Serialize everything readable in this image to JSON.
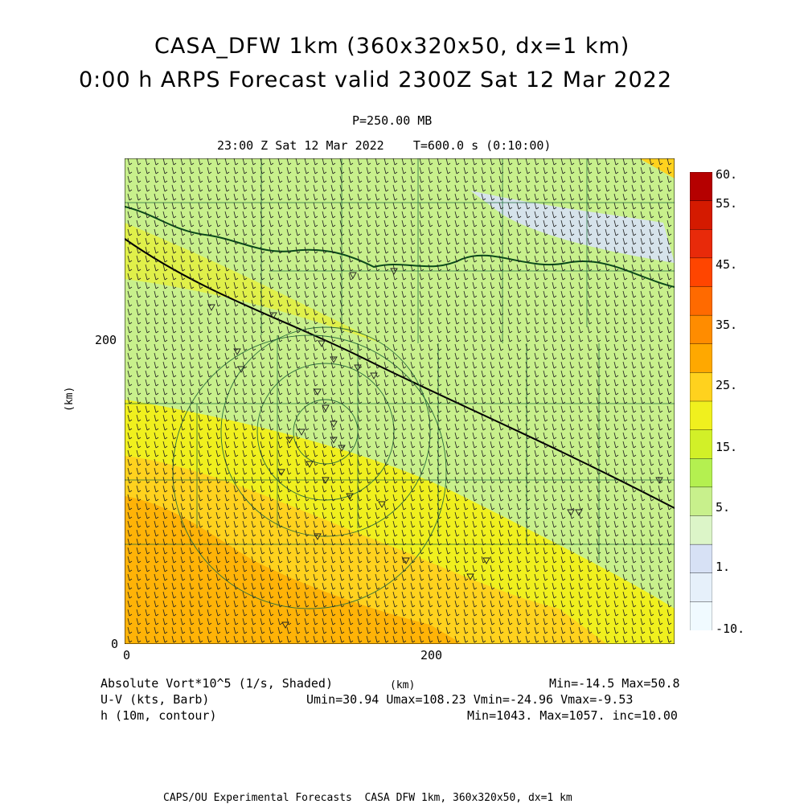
{
  "header": {
    "title_line1": "CASA_DFW 1km (360x320x50, dx=1 km)",
    "title_line2": "0:00 h ARPS Forecast valid 2300Z Sat 12 Mar 2022",
    "pressure": "P=250.00 MB",
    "time_line": "23:00 Z Sat 12 Mar 2022    T=600.0 s (0:10:00)"
  },
  "axes": {
    "x_ticks": [
      "0",
      "200"
    ],
    "y_ticks": [
      "0",
      "200"
    ],
    "x_unit": "(km)",
    "y_unit": "(km)"
  },
  "colorbar": {
    "labels": [
      "60.",
      "55.",
      "45.",
      "35.",
      "25.",
      "15.",
      "5.",
      "1.",
      "-10."
    ],
    "colors": [
      "#b50000",
      "#d41a00",
      "#e82a0a",
      "#ff4500",
      "#ff6a00",
      "#ff8c00",
      "#ffa800",
      "#ffd21e",
      "#f0f01e",
      "#d2f028",
      "#b4f050",
      "#c8f08c",
      "#dcf5c8",
      "#d7e1f5",
      "#e6f0fa",
      "#f0faff"
    ]
  },
  "footer": {
    "field1_name": "Absolute Vort*10^5 (1/s, Shaded)",
    "field1_stats": "Min=-14.5 Max=50.8",
    "field2_name": "U-V (kts, Barb)",
    "field2_stats": "Umin=30.94 Umax=108.23 Vmin=-24.96 Vmax=-9.53",
    "field3_name": "h (10m, contour)",
    "field3_stats": "Min=1043. Max=1057. inc=10.00",
    "credit": "CAPS/OU Experimental Forecasts  CASA DFW 1km, 360x320x50, dx=1 km"
  },
  "map_colors": {
    "background": "#c8f08c",
    "light_green": "#d2f0a0",
    "yellow": "#f0f01e",
    "orange": "#ffd21e",
    "dark_orange": "#ffa800",
    "blue_patch": "#d7e1f5",
    "county_lines": "#1e6e3c",
    "state_line": "#0a4a1a",
    "barb": "#202020"
  }
}
